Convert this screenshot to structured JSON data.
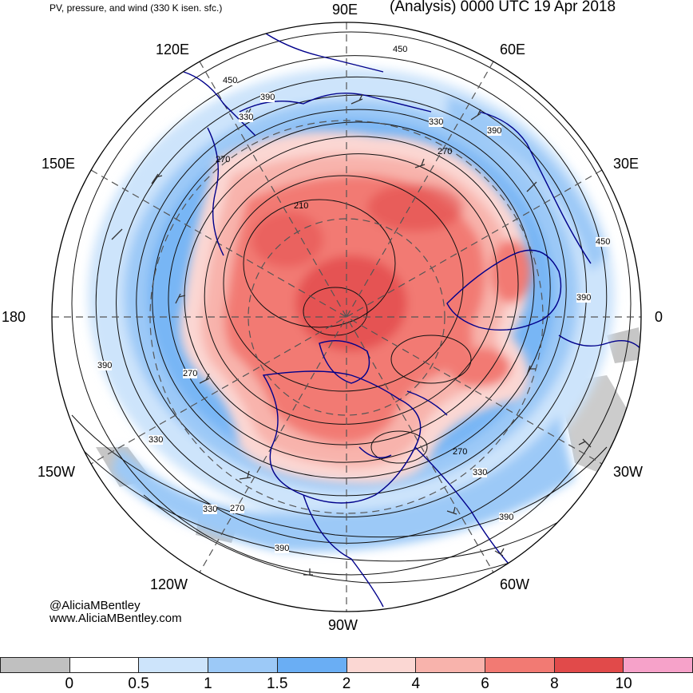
{
  "header": {
    "subtitle": "PV, pressure, and wind (330 K isen. sfc.)",
    "title": "(Analysis) 0000 UTC 19 Apr 2018"
  },
  "map": {
    "longitude_labels": {
      "lon_90E": "90E",
      "lon_120E": "120E",
      "lon_60E": "60E",
      "lon_150E": "150E",
      "lon_30E": "30E",
      "lon_180": "180",
      "lon_0": "0",
      "lon_150W": "150W",
      "lon_30W": "30W",
      "lon_120W": "120W",
      "lon_60W": "60W",
      "lon_90W": "90W"
    },
    "contour_labels": [
      "450",
      "390",
      "330",
      "270",
      "210",
      "330",
      "270",
      "450",
      "390",
      "390",
      "270",
      "330",
      "270",
      "330",
      "270",
      "390",
      "330",
      "390",
      "450",
      "390"
    ]
  },
  "credits": {
    "handle": "@AliciaMBentley",
    "website": "www.AliciaMBentley.com"
  },
  "colorbar": {
    "colors": [
      "#c0c0c0",
      "#ffffff",
      "#cde4fb",
      "#9cc9f7",
      "#6aaef4",
      "#fbd7d3",
      "#f8b3ac",
      "#f27a73",
      "#e14a4a",
      "#f6a2c9"
    ],
    "ticks": [
      "0",
      "0.5",
      "1",
      "1.5",
      "2",
      "4",
      "6",
      "8",
      "10"
    ]
  }
}
